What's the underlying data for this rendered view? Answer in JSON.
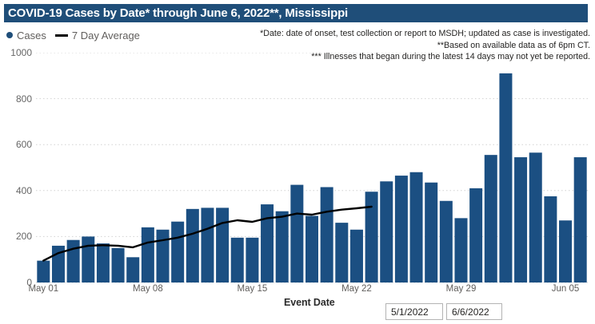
{
  "title": "COVID-19 Cases by Date* through June 6, 2022**, Mississippi",
  "legend": {
    "cases_label": "Cases",
    "avg_label": "7 Day Average"
  },
  "notes": [
    "*Date: date of onset, test collection or report to MSDH; updated as case is investigated.",
    "**Based on available data as of 6pm CT.",
    "*** Illnesses that began during the latest 14 days may not yet be reported."
  ],
  "x_axis_title": "Event Date",
  "filters": {
    "start_date": "5/1/2022",
    "end_date": "6/6/2022"
  },
  "colors": {
    "banner_bg": "#1F4E79",
    "bar": "#1B4F82",
    "line": "#000000",
    "legend_dot": "#1F4E79",
    "axis_text": "#605E5C",
    "grid": "#D2D2D2"
  },
  "chart_data": {
    "type": "bar",
    "title": "COVID-19 Cases by Date* through June 6, 2022**, Mississippi",
    "xlabel": "Event Date",
    "ylabel": "",
    "ylim": [
      0,
      1000
    ],
    "yticks": [
      0,
      200,
      400,
      600,
      800,
      1000
    ],
    "grid": "dotted horizontal",
    "legend_position": "top-left",
    "x": [
      "May 01",
      "May 02",
      "May 03",
      "May 04",
      "May 05",
      "May 06",
      "May 07",
      "May 08",
      "May 09",
      "May 10",
      "May 11",
      "May 12",
      "May 13",
      "May 14",
      "May 15",
      "May 16",
      "May 17",
      "May 18",
      "May 19",
      "May 20",
      "May 21",
      "May 22",
      "May 23",
      "May 24",
      "May 25",
      "May 26",
      "May 27",
      "May 28",
      "May 29",
      "May 30",
      "May 31",
      "Jun 01",
      "Jun 02",
      "Jun 03",
      "Jun 04",
      "Jun 05",
      "Jun 06"
    ],
    "xtick_labels": [
      "May 01",
      "May 08",
      "May 15",
      "May 22",
      "May 29",
      "Jun 05"
    ],
    "xtick_indices": [
      0,
      7,
      14,
      21,
      28,
      35
    ],
    "series": [
      {
        "name": "Cases",
        "type": "bar",
        "values": [
          95,
          160,
          185,
          200,
          170,
          150,
          110,
          240,
          230,
          265,
          320,
          325,
          325,
          195,
          195,
          340,
          310,
          425,
          290,
          415,
          260,
          230,
          395,
          440,
          465,
          480,
          435,
          355,
          280,
          410,
          555,
          910,
          545,
          565,
          375,
          270,
          545
        ]
      },
      {
        "name": "7 Day Average",
        "type": "line",
        "note": "line ends May 23; latest 14 days not averaged",
        "values": [
          95,
          128,
          147,
          160,
          162,
          160,
          153,
          174,
          184,
          195,
          212,
          234,
          259,
          271,
          264,
          280,
          286,
          300,
          295,
          308,
          317,
          323,
          330,
          null,
          null,
          null,
          null,
          null,
          null,
          null,
          null,
          null,
          null,
          null,
          null,
          null,
          null
        ]
      }
    ]
  }
}
